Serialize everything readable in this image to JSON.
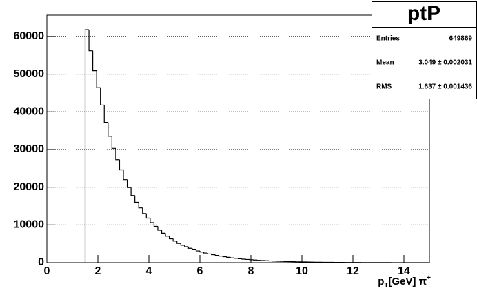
{
  "chart_data": {
    "type": "histogram",
    "title": "ptP",
    "x_label": {
      "base": "p",
      "sub": "T",
      "main": "[GeV] π",
      "sup": "+"
    },
    "bins": [
      1.5,
      1.65,
      1.8,
      1.95,
      2.1,
      2.25,
      2.4,
      2.55,
      2.7,
      2.85,
      3,
      3.15,
      3.3,
      3.45,
      3.6,
      3.75,
      3.9,
      4.05,
      4.2,
      4.35,
      4.5,
      4.65,
      4.8,
      4.95,
      5.1,
      5.25,
      5.4,
      5.55,
      5.7,
      5.85,
      6,
      6.15,
      6.3,
      6.45,
      6.6,
      6.75,
      6.9,
      7.05,
      7.2,
      7.35,
      7.5,
      7.65,
      7.8,
      7.95,
      8.1,
      8.25,
      8.4,
      8.55,
      8.7,
      8.85,
      9,
      9.15,
      9.3,
      9.45,
      9.6,
      9.75,
      9.9,
      10.05,
      10.2,
      10.35,
      10.5,
      10.65,
      10.8,
      10.95,
      11.1,
      11.25,
      11.4,
      11.55,
      11.7,
      11.85,
      12,
      12.15,
      12.3,
      12.45,
      12.6,
      12.75,
      12.9,
      13.05,
      13.2,
      13.35,
      13.5,
      13.65,
      13.8,
      13.95,
      14.1,
      14.25,
      14.4,
      14.55,
      14.7,
      14.85,
      15
    ],
    "values": [
      61800,
      56200,
      50900,
      46400,
      41800,
      37200,
      33500,
      30300,
      27300,
      24600,
      22000,
      19900,
      17800,
      16000,
      14500,
      13000,
      11800,
      10600,
      9600,
      8600,
      7800,
      7000,
      6300,
      5700,
      5100,
      4600,
      4200,
      3800,
      3400,
      3100,
      2800,
      2550,
      2300,
      2100,
      1900,
      1700,
      1550,
      1400,
      1250,
      1130,
      1020,
      920,
      830,
      750,
      680,
      610,
      550,
      500,
      450,
      410,
      370,
      330,
      300,
      270,
      245,
      220,
      200,
      180,
      160,
      145,
      130,
      118,
      106,
      96,
      86,
      78,
      70,
      63,
      57,
      51,
      46,
      41,
      37,
      33,
      30,
      27,
      24,
      22,
      20,
      18,
      16,
      14,
      13,
      12,
      10,
      9,
      8,
      7,
      6,
      6
    ],
    "color": "#000000",
    "xlim": [
      0,
      15
    ],
    "xticks": [
      0,
      2,
      4,
      6,
      8,
      10,
      12,
      14
    ],
    "ylim": [
      0,
      65650
    ],
    "yticks": [
      0,
      10000,
      20000,
      30000,
      40000,
      50000,
      60000
    ],
    "grid": true,
    "stats": {
      "entries_label": "Entries",
      "entries": 649869,
      "mean_label": "Mean",
      "mean": "3.049 ± 0.002031",
      "rms_label": "RMS",
      "rms": "1.637 ± 0.001436"
    }
  }
}
